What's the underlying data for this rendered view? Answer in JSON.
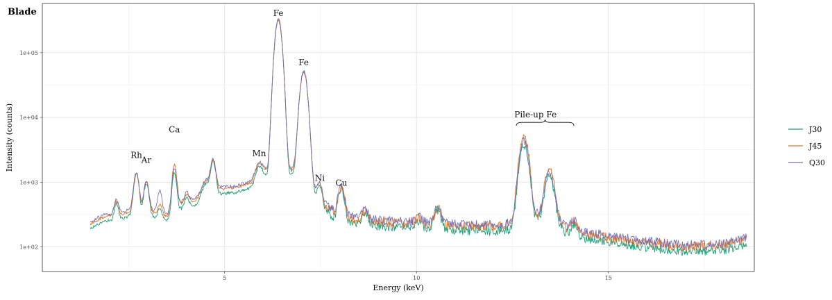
{
  "chart_data": {
    "type": "line",
    "title": "Blade",
    "xlabel": "Energy (keV)",
    "ylabel": "Intensity (counts)",
    "xlim": [
      0.6,
      19.0
    ],
    "ylim_log10": [
      1.65,
      5.77
    ],
    "yscale": "log",
    "grid": true,
    "legend_position": "right",
    "x_ticks": [
      {
        "value": 5,
        "label": "5"
      },
      {
        "value": 10,
        "label": "10"
      },
      {
        "value": 15,
        "label": "15"
      }
    ],
    "y_ticks": [
      {
        "value": 100,
        "label": "1e+02"
      },
      {
        "value": 1000,
        "label": "1e+03"
      },
      {
        "value": 10000,
        "label": "1e+04"
      },
      {
        "value": 100000,
        "label": "1e+05"
      }
    ],
    "annotations": [
      {
        "text": "Rh",
        "x": 2.7,
        "y": 2350
      },
      {
        "text": "Ar",
        "x": 2.96,
        "y": 2000
      },
      {
        "text": "Ca",
        "x": 3.69,
        "y": 5900
      },
      {
        "text": "Mn",
        "x": 5.9,
        "y": 2500
      },
      {
        "text": "Fe",
        "x": 6.4,
        "y": 370000
      },
      {
        "text": "Fe",
        "x": 7.06,
        "y": 64000
      },
      {
        "text": "Ni",
        "x": 7.48,
        "y": 1050
      },
      {
        "text": "Cu",
        "x": 8.04,
        "y": 880
      },
      {
        "text": "Pile-up Fe",
        "x": 13.1,
        "y": 10000
      }
    ],
    "bracket": {
      "x_start": 12.6,
      "x_end": 14.1,
      "y": 7800
    },
    "series": [
      {
        "name": "J30",
        "color": "#1b9e77",
        "peak_scale": 0.85,
        "background_scale": 0.85
      },
      {
        "name": "J45",
        "color": "#e6701f",
        "peak_scale": 1.08,
        "background_scale": 1.0
      },
      {
        "name": "Q30",
        "color": "#7570b3",
        "peak_scale": 1.0,
        "background_scale": 1.07
      }
    ],
    "x_range_data": [
      1.5,
      18.6
    ],
    "peaks": [
      {
        "center": 2.18,
        "height": 220,
        "width": 0.05
      },
      {
        "center": 2.7,
        "height": 1050,
        "width": 0.06
      },
      {
        "center": 2.96,
        "height": 680,
        "width": 0.06
      },
      {
        "center": 3.31,
        "height": 120,
        "width": 0.05
      },
      {
        "center": 3.69,
        "height": 1300,
        "width": 0.05
      },
      {
        "center": 4.01,
        "height": 180,
        "width": 0.05
      },
      {
        "center": 4.51,
        "height": 420,
        "width": 0.09
      },
      {
        "center": 4.7,
        "height": 1500,
        "width": 0.06
      },
      {
        "center": 5.9,
        "height": 700,
        "width": 0.08
      },
      {
        "center": 6.4,
        "height": 320000,
        "width": 0.075
      },
      {
        "center": 7.06,
        "height": 50000,
        "width": 0.08
      },
      {
        "center": 7.48,
        "height": 400,
        "width": 0.06
      },
      {
        "center": 8.04,
        "height": 560,
        "width": 0.07
      },
      {
        "center": 8.65,
        "height": 120,
        "width": 0.07
      },
      {
        "center": 10.05,
        "height": 60,
        "width": 0.08
      },
      {
        "center": 10.55,
        "height": 180,
        "width": 0.08
      },
      {
        "center": 12.8,
        "height": 4200,
        "width": 0.1
      },
      {
        "center": 13.46,
        "height": 1150,
        "width": 0.1
      },
      {
        "center": 14.1,
        "height": 80,
        "width": 0.08
      }
    ],
    "background": [
      {
        "x": 1.5,
        "y": 230
      },
      {
        "x": 1.9,
        "y": 300
      },
      {
        "x": 2.2,
        "y": 300
      },
      {
        "x": 2.5,
        "y": 350
      },
      {
        "x": 2.8,
        "y": 330
      },
      {
        "x": 3.2,
        "y": 330
      },
      {
        "x": 3.5,
        "y": 300
      },
      {
        "x": 3.8,
        "y": 450
      },
      {
        "x": 4.2,
        "y": 520
      },
      {
        "x": 4.6,
        "y": 650
      },
      {
        "x": 4.9,
        "y": 780
      },
      {
        "x": 5.3,
        "y": 820
      },
      {
        "x": 5.7,
        "y": 980
      },
      {
        "x": 6.0,
        "y": 1400
      },
      {
        "x": 6.3,
        "y": 1500
      },
      {
        "x": 6.8,
        "y": 1500
      },
      {
        "x": 7.3,
        "y": 800
      },
      {
        "x": 7.6,
        "y": 420
      },
      {
        "x": 8.0,
        "y": 300
      },
      {
        "x": 8.5,
        "y": 260
      },
      {
        "x": 9.2,
        "y": 240
      },
      {
        "x": 10.0,
        "y": 225
      },
      {
        "x": 11.0,
        "y": 215
      },
      {
        "x": 12.0,
        "y": 205
      },
      {
        "x": 12.5,
        "y": 220
      },
      {
        "x": 13.0,
        "y": 300
      },
      {
        "x": 13.6,
        "y": 270
      },
      {
        "x": 14.0,
        "y": 170
      },
      {
        "x": 15.0,
        "y": 140
      },
      {
        "x": 16.0,
        "y": 115
      },
      {
        "x": 17.0,
        "y": 100
      },
      {
        "x": 18.0,
        "y": 105
      },
      {
        "x": 18.6,
        "y": 130
      }
    ]
  }
}
